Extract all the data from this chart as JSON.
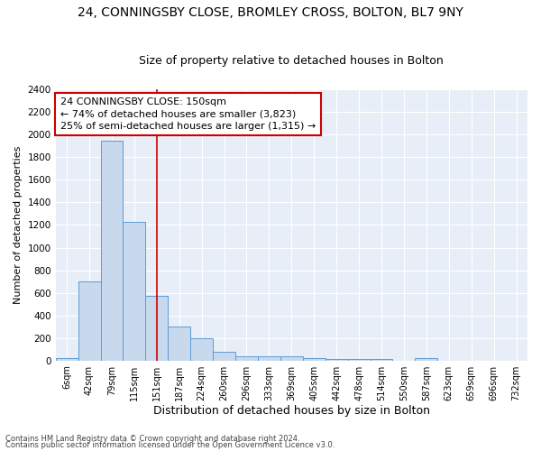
{
  "title": "24, CONNINGSBY CLOSE, BROMLEY CROSS, BOLTON, BL7 9NY",
  "subtitle": "Size of property relative to detached houses in Bolton",
  "xlabel": "Distribution of detached houses by size in Bolton",
  "ylabel": "Number of detached properties",
  "bar_labels": [
    "6sqm",
    "42sqm",
    "79sqm",
    "115sqm",
    "151sqm",
    "187sqm",
    "224sqm",
    "260sqm",
    "296sqm",
    "333sqm",
    "369sqm",
    "405sqm",
    "442sqm",
    "478sqm",
    "514sqm",
    "550sqm",
    "587sqm",
    "623sqm",
    "659sqm",
    "696sqm",
    "732sqm"
  ],
  "bar_values": [
    20,
    700,
    1950,
    1230,
    570,
    305,
    200,
    80,
    40,
    35,
    35,
    20,
    15,
    10,
    15,
    0,
    20,
    0,
    0,
    0,
    0
  ],
  "bar_color": "#c9d9ed",
  "bar_edge_color": "#5b9bd5",
  "vline_x": 4,
  "vline_color": "#cc0000",
  "annotation_line1": "24 CONNINGSBY CLOSE: 150sqm",
  "annotation_line2": "← 74% of detached houses are smaller (3,823)",
  "annotation_line3": "25% of semi-detached houses are larger (1,315) →",
  "annotation_box_color": "#ffffff",
  "annotation_box_edge": "#cc0000",
  "footer1": "Contains HM Land Registry data © Crown copyright and database right 2024.",
  "footer2": "Contains public sector information licensed under the Open Government Licence v3.0.",
  "ylim": [
    0,
    2400
  ],
  "yticks": [
    0,
    200,
    400,
    600,
    800,
    1000,
    1200,
    1400,
    1600,
    1800,
    2000,
    2200,
    2400
  ],
  "bg_color": "#e8eef7",
  "title_fontsize": 10,
  "subtitle_fontsize": 9,
  "annotation_fontsize": 8,
  "ylabel_fontsize": 8,
  "xlabel_fontsize": 9
}
